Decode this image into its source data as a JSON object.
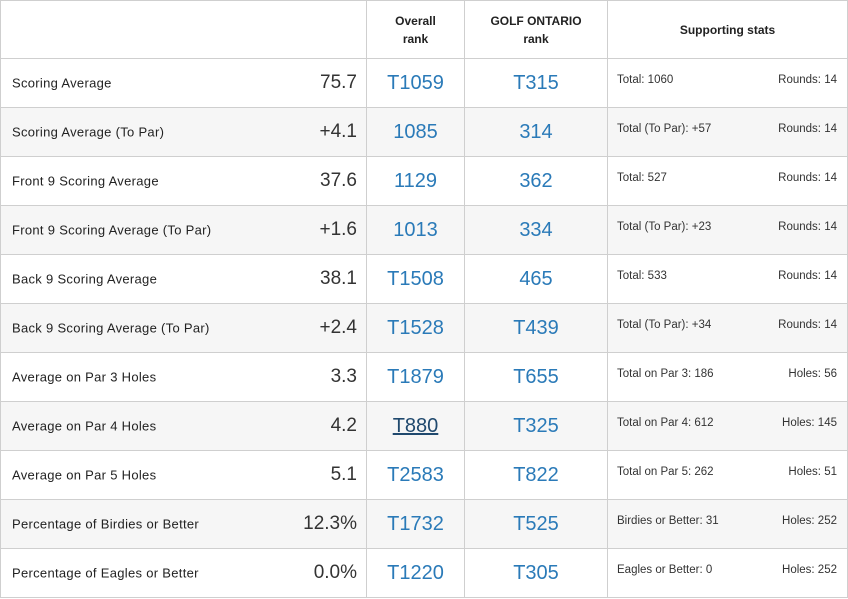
{
  "header": {
    "name": "",
    "overall_line1": "Overall",
    "overall_line2": "rank",
    "gol_line1": "GOLF ONTARIO",
    "gol_line2": "rank",
    "supporting": "Supporting stats"
  },
  "rows": [
    {
      "name": "Scoring Average",
      "value": "75.7",
      "overall": "T1059",
      "gol": "T315",
      "sup_left": "Total: 1060",
      "sup_right": "Rounds: 14"
    },
    {
      "name": "Scoring Average (To Par)",
      "value": "+4.1",
      "overall": "1085",
      "gol": "314",
      "sup_left": "Total (To Par): +57",
      "sup_right": "Rounds: 14"
    },
    {
      "name": "Front 9 Scoring Average",
      "value": "37.6",
      "overall": "1129",
      "gol": "362",
      "sup_left": "Total: 527",
      "sup_right": "Rounds: 14"
    },
    {
      "name": "Front 9 Scoring Average (To Par)",
      "value": "+1.6",
      "overall": "1013",
      "gol": "334",
      "sup_left": "Total (To Par): +23",
      "sup_right": "Rounds: 14"
    },
    {
      "name": "Back 9 Scoring Average",
      "value": "38.1",
      "overall": "T1508",
      "gol": "465",
      "sup_left": "Total: 533",
      "sup_right": "Rounds: 14"
    },
    {
      "name": "Back 9 Scoring Average (To Par)",
      "value": "+2.4",
      "overall": "T1528",
      "gol": "T439",
      "sup_left": "Total (To Par): +34",
      "sup_right": "Rounds: 14"
    },
    {
      "name": "Average on Par 3 Holes",
      "value": "3.3",
      "overall": "T1879",
      "gol": "T655",
      "sup_left": "Total on Par 3: 186",
      "sup_right": "Holes: 56"
    },
    {
      "name": "Average on Par 4 Holes",
      "value": "4.2",
      "overall": "T880",
      "gol": "T325",
      "sup_left": "Total on Par 4: 612",
      "sup_right": "Holes: 145"
    },
    {
      "name": "Average on Par 5 Holes",
      "value": "5.1",
      "overall": "T2583",
      "gol": "T822",
      "sup_left": "Total on Par 5: 262",
      "sup_right": "Holes: 51"
    },
    {
      "name": "Percentage of Birdies or Better",
      "value": "12.3%",
      "overall": "T1732",
      "gol": "T525",
      "sup_left": "Birdies or Better: 31",
      "sup_right": "Holes: 252"
    },
    {
      "name": "Percentage of Eagles or Better",
      "value": "0.0%",
      "overall": "T1220",
      "gol": "T305",
      "sup_left": "Eagles or Better: 0",
      "sup_right": "Holes: 252"
    }
  ],
  "colors": {
    "rank_link": "#2a7ab8",
    "rank_link_hovered": "#20496e",
    "border": "#cfcfcf",
    "row_alt": "#f6f6f6"
  }
}
